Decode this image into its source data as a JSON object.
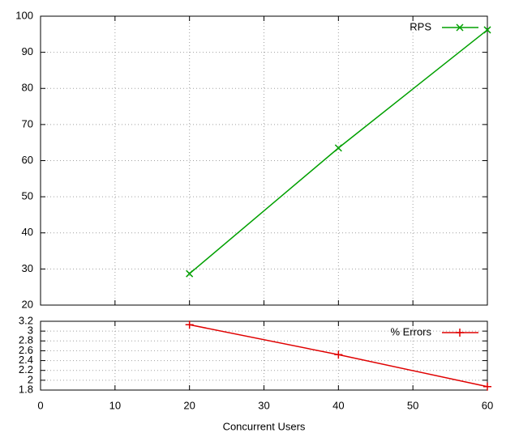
{
  "chart_data": [
    {
      "type": "line",
      "x": [
        20,
        40,
        60
      ],
      "series": [
        {
          "name": "RPS",
          "color": "#00a000",
          "marker": "x",
          "values": [
            28.7,
            63.5,
            96.2
          ]
        }
      ],
      "xlim": [
        0,
        60
      ],
      "xticks": [
        0,
        10,
        20,
        30,
        40,
        50,
        60
      ],
      "ylim": [
        20,
        100
      ],
      "yticks": [
        20,
        30,
        40,
        50,
        60,
        70,
        80,
        90,
        100
      ],
      "grid": true,
      "legend": "top-right"
    },
    {
      "type": "line",
      "x": [
        20,
        40,
        60
      ],
      "series": [
        {
          "name": "% Errors",
          "color": "#e00000",
          "marker": "+",
          "values": [
            3.13,
            2.52,
            1.87
          ]
        }
      ],
      "xlim": [
        0,
        60
      ],
      "xticks": [
        0,
        10,
        20,
        30,
        40,
        50,
        60
      ],
      "ylim": [
        1.8,
        3.2
      ],
      "yticks": [
        1.8,
        2,
        2.2,
        2.4,
        2.6,
        2.8,
        3,
        3.2
      ],
      "x_label": "Concurrent Users",
      "grid": true,
      "legend": "top-right"
    }
  ]
}
